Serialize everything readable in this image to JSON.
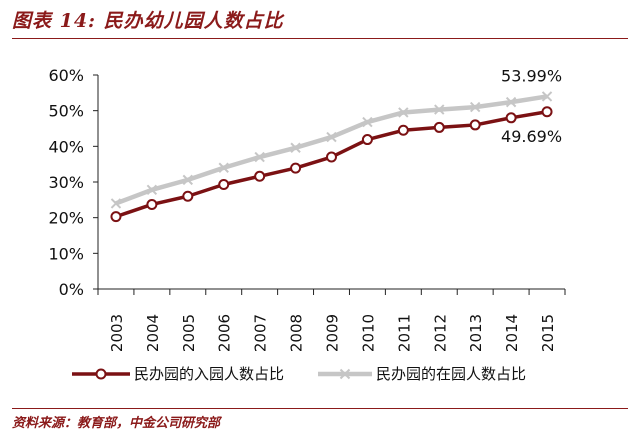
{
  "header": {
    "title": "图表 14: 民办幼儿园人数占比"
  },
  "footer": {
    "source": "资料来源：教育部，中金公司研究部"
  },
  "chart_data": {
    "type": "line",
    "title": "",
    "xlabel": "",
    "ylabel": "",
    "x": [
      "2003",
      "2004",
      "2005",
      "2006",
      "2007",
      "2008",
      "2009",
      "2010",
      "2011",
      "2012",
      "2013",
      "2014",
      "2015"
    ],
    "ylim": [
      0,
      60
    ],
    "yticks": [
      "0%",
      "10%",
      "20%",
      "30%",
      "40%",
      "50%",
      "60%"
    ],
    "grid": false,
    "legend_position": "bottom",
    "series": [
      {
        "name": "民办园的入园人数占比",
        "color": "#7b1113",
        "marker": "circle",
        "values": [
          20.3,
          23.7,
          26.0,
          29.3,
          31.6,
          33.9,
          37.0,
          41.9,
          44.5,
          45.3,
          46.0,
          48.0,
          49.69
        ]
      },
      {
        "name": "民办园的在园人数占比",
        "color": "#c6c6c6",
        "marker": "cross",
        "values": [
          24.0,
          27.8,
          30.6,
          34.0,
          37.0,
          39.6,
          42.6,
          46.8,
          49.5,
          50.3,
          51.0,
          52.4,
          53.99
        ]
      }
    ],
    "annotations": [
      {
        "text": "53.99%",
        "series": 1,
        "index": 12
      },
      {
        "text": "49.69%",
        "series": 0,
        "index": 12
      }
    ]
  }
}
